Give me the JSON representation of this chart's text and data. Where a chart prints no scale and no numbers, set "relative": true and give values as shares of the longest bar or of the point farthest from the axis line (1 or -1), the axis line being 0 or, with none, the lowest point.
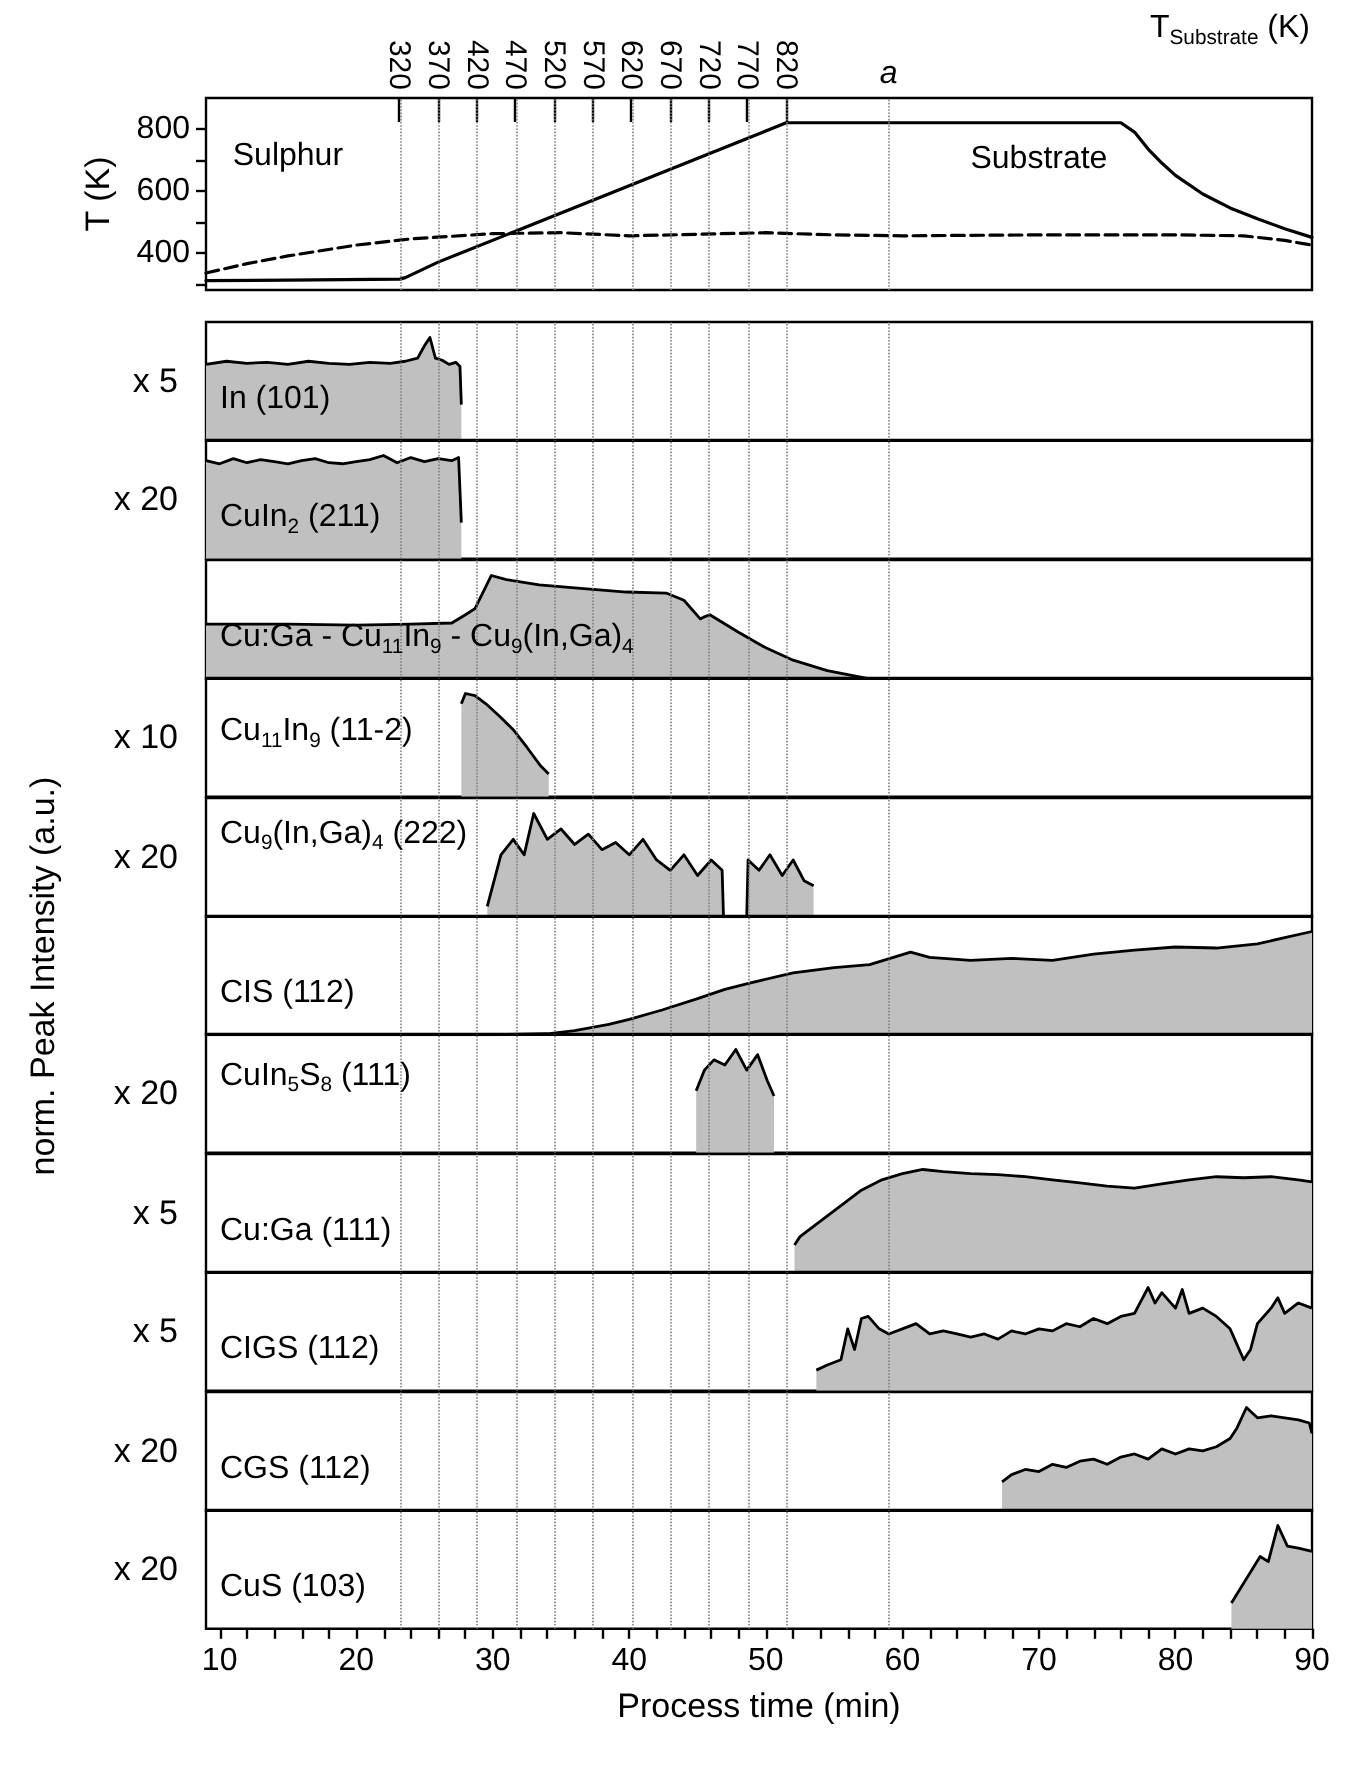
{
  "chart_data": [
    {
      "type": "line",
      "ylabel": "T (K)",
      "x2label": "T$_{Substrate}$ (K)",
      "xlim": [
        9,
        90
      ],
      "ylim": [
        280,
        900
      ],
      "yticks": [
        {
          "value": 300,
          "label": null
        },
        400,
        {
          "value": 500,
          "label": null
        },
        600,
        {
          "value": 700,
          "label": null
        },
        800
      ],
      "x2lim": [
        70,
        1500
      ],
      "x2ticks": [
        320,
        370,
        420,
        470,
        520,
        570,
        620,
        670,
        720,
        770,
        820
      ],
      "tick_labels": "y",
      "marker": "none",
      "series": [
        {
          "name": "Substrate",
          "color": "#000000",
          "line_style": "solid",
          "x": [
            9,
            15,
            23.2,
            23.6,
            26,
            51.5,
            60,
            70,
            76,
            77,
            78,
            79,
            80,
            82,
            84,
            86,
            88,
            90
          ],
          "values": [
            310,
            312,
            315,
            320,
            370,
            820,
            820,
            820,
            820,
            790,
            735,
            690,
            650,
            590,
            545,
            510,
            478,
            450
          ]
        },
        {
          "name": "Sulphur",
          "color": "#000000",
          "line_style": "dashed",
          "x": [
            9,
            12,
            15,
            20,
            24,
            30,
            35,
            40,
            45,
            50,
            55,
            60,
            70,
            80,
            85,
            88,
            90
          ],
          "values": [
            335,
            365,
            390,
            425,
            445,
            462,
            465,
            455,
            460,
            465,
            458,
            455,
            458,
            458,
            455,
            440,
            425
          ]
        }
      ],
      "ref_lines": [
        {
          "axis": "x",
          "value": 23.2,
          "color": "#808080",
          "line_style": "dotted"
        },
        {
          "axis": "x",
          "value": 26,
          "color": "#808080",
          "line_style": "dotted"
        },
        {
          "axis": "x",
          "value": 28.8,
          "color": "#808080",
          "line_style": "dotted"
        },
        {
          "axis": "x",
          "value": 31.7,
          "color": "#808080",
          "line_style": "dotted"
        },
        {
          "axis": "x",
          "value": 34.5,
          "color": "#808080",
          "line_style": "dotted"
        },
        {
          "axis": "x",
          "value": 37.3,
          "color": "#808080",
          "line_style": "dotted"
        },
        {
          "axis": "x",
          "value": 40.2,
          "color": "#808080",
          "line_style": "dotted"
        },
        {
          "axis": "x",
          "value": 43,
          "color": "#808080",
          "line_style": "dotted"
        },
        {
          "axis": "x",
          "value": 45.8,
          "color": "#808080",
          "line_style": "dotted"
        },
        {
          "axis": "x",
          "value": 48.7,
          "color": "#808080",
          "line_style": "dotted"
        },
        {
          "axis": "x",
          "value": 51.5,
          "color": "#808080",
          "line_style": "dotted"
        },
        {
          "axis": "x",
          "value": 59,
          "color": "#808080",
          "line_style": "dotted",
          "label": "a"
        }
      ]
    },
    {
      "type": "area",
      "relative": true,
      "ylabel": "x 5",
      "xlim": [
        9,
        90
      ],
      "tick_labels": false,
      "annotations": [
        "norm. Peak Intensity (a.u.)"
      ],
      "series": [
        {
          "name": "In (101)",
          "color": "#c0c0c0",
          "x": [
            9,
            10.5,
            12,
            13.5,
            15,
            16.5,
            18,
            19.5,
            21,
            22.5,
            23.6,
            24.5,
            25,
            25.4,
            25.8,
            26.3,
            26.8,
            27.3,
            27.6,
            27.7
          ],
          "values": [
            0.74,
            0.77,
            0.75,
            0.76,
            0.74,
            0.77,
            0.75,
            0.74,
            0.76,
            0.75,
            0.77,
            0.8,
            0.92,
            1.0,
            0.8,
            0.78,
            0.74,
            0.76,
            0.72,
            0.35
          ]
        }
      ],
      "ref_lines": [
        {
          "axis": "x",
          "value": 23.2,
          "color": "#808080",
          "line_style": "dotted"
        },
        {
          "axis": "x",
          "value": 26,
          "color": "#808080",
          "line_style": "dotted"
        },
        {
          "axis": "x",
          "value": 28.8,
          "color": "#808080",
          "line_style": "dotted"
        },
        {
          "axis": "x",
          "value": 31.7,
          "color": "#808080",
          "line_style": "dotted"
        },
        {
          "axis": "x",
          "value": 34.5,
          "color": "#808080",
          "line_style": "dotted"
        },
        {
          "axis": "x",
          "value": 37.3,
          "color": "#808080",
          "line_style": "dotted"
        },
        {
          "axis": "x",
          "value": 40.2,
          "color": "#808080",
          "line_style": "dotted"
        },
        {
          "axis": "x",
          "value": 43,
          "color": "#808080",
          "line_style": "dotted"
        },
        {
          "axis": "x",
          "value": 45.8,
          "color": "#808080",
          "line_style": "dotted"
        },
        {
          "axis": "x",
          "value": 48.7,
          "color": "#808080",
          "line_style": "dotted"
        },
        {
          "axis": "x",
          "value": 51.5,
          "color": "#808080",
          "line_style": "dotted"
        },
        {
          "axis": "x",
          "value": 59,
          "color": "#808080",
          "line_style": "dotted"
        }
      ]
    },
    {
      "type": "area",
      "relative": true,
      "ylabel": "x 20",
      "xlim": [
        9,
        90
      ],
      "tick_labels": false,
      "series": [
        {
          "name": "CuIn$_{2}$ (211)",
          "color": "#c0c0c0",
          "x": [
            9,
            10,
            11,
            12,
            13,
            14,
            15,
            16,
            17,
            18,
            19,
            20,
            21,
            22,
            23,
            24,
            25,
            26,
            27,
            27.5,
            27.7
          ],
          "values": [
            0.95,
            0.92,
            0.97,
            0.93,
            0.96,
            0.94,
            0.92,
            0.95,
            0.97,
            0.93,
            0.92,
            0.94,
            0.96,
            1.0,
            0.93,
            0.98,
            0.94,
            0.97,
            0.95,
            0.98,
            0.35
          ]
        }
      ],
      "ref_lines": [
        {
          "axis": "x",
          "value": 23.2,
          "color": "#808080",
          "line_style": "dotted"
        },
        {
          "axis": "x",
          "value": 26,
          "color": "#808080",
          "line_style": "dotted"
        },
        {
          "axis": "x",
          "value": 28.8,
          "color": "#808080",
          "line_style": "dotted"
        },
        {
          "axis": "x",
          "value": 31.7,
          "color": "#808080",
          "line_style": "dotted"
        },
        {
          "axis": "x",
          "value": 34.5,
          "color": "#808080",
          "line_style": "dotted"
        },
        {
          "axis": "x",
          "value": 37.3,
          "color": "#808080",
          "line_style": "dotted"
        },
        {
          "axis": "x",
          "value": 40.2,
          "color": "#808080",
          "line_style": "dotted"
        },
        {
          "axis": "x",
          "value": 43,
          "color": "#808080",
          "line_style": "dotted"
        },
        {
          "axis": "x",
          "value": 45.8,
          "color": "#808080",
          "line_style": "dotted"
        },
        {
          "axis": "x",
          "value": 48.7,
          "color": "#808080",
          "line_style": "dotted"
        },
        {
          "axis": "x",
          "value": 51.5,
          "color": "#808080",
          "line_style": "dotted"
        },
        {
          "axis": "x",
          "value": 59,
          "color": "#808080",
          "line_style": "dotted"
        }
      ]
    },
    {
      "type": "area",
      "relative": true,
      "xlim": [
        9,
        90
      ],
      "tick_labels": false,
      "series": [
        {
          "name": "Cu:Ga - Cu$_{11}$In$_{9}$ - Cu$_{9}$(In,Ga)$_{4}$",
          "color": "#c0c0c0",
          "x": [
            9,
            15,
            20,
            24,
            27,
            28,
            28.7,
            29.9,
            31,
            33.4,
            36,
            39.8,
            42.7,
            44,
            45.2,
            45.5,
            45.9,
            48,
            50,
            52,
            54.5,
            57.6
          ],
          "values": [
            0.53,
            0.53,
            0.52,
            0.53,
            0.54,
            0.62,
            0.68,
            1.0,
            0.96,
            0.91,
            0.88,
            0.84,
            0.83,
            0.76,
            0.58,
            0.6,
            0.62,
            0.45,
            0.3,
            0.18,
            0.08,
            0
          ]
        }
      ],
      "ref_lines": [
        {
          "axis": "x",
          "value": 23.2,
          "color": "#808080",
          "line_style": "dotted"
        },
        {
          "axis": "x",
          "value": 26,
          "color": "#808080",
          "line_style": "dotted"
        },
        {
          "axis": "x",
          "value": 28.8,
          "color": "#808080",
          "line_style": "dotted"
        },
        {
          "axis": "x",
          "value": 31.7,
          "color": "#808080",
          "line_style": "dotted"
        },
        {
          "axis": "x",
          "value": 34.5,
          "color": "#808080",
          "line_style": "dotted"
        },
        {
          "axis": "x",
          "value": 37.3,
          "color": "#808080",
          "line_style": "dotted"
        },
        {
          "axis": "x",
          "value": 40.2,
          "color": "#808080",
          "line_style": "dotted"
        },
        {
          "axis": "x",
          "value": 43,
          "color": "#808080",
          "line_style": "dotted"
        },
        {
          "axis": "x",
          "value": 45.8,
          "color": "#808080",
          "line_style": "dotted"
        },
        {
          "axis": "x",
          "value": 48.7,
          "color": "#808080",
          "line_style": "dotted"
        },
        {
          "axis": "x",
          "value": 51.5,
          "color": "#808080",
          "line_style": "dotted"
        },
        {
          "axis": "x",
          "value": 59,
          "color": "#808080",
          "line_style": "dotted"
        }
      ]
    },
    {
      "type": "area",
      "relative": true,
      "ylabel": "x 10",
      "xlim": [
        9,
        90
      ],
      "tick_labels": false,
      "series": [
        {
          "name": "Cu$_{11}$In$_{9}$ (11-2)",
          "color": "#c0c0c0",
          "x": [
            27.7,
            28,
            28.7,
            29.5,
            30.5,
            31.5,
            32.5,
            33.5,
            34.1
          ],
          "values": [
            0.9,
            1.0,
            0.98,
            0.9,
            0.78,
            0.65,
            0.48,
            0.3,
            0.22
          ]
        }
      ],
      "ref_lines": [
        {
          "axis": "x",
          "value": 23.2,
          "color": "#808080",
          "line_style": "dotted"
        },
        {
          "axis": "x",
          "value": 26,
          "color": "#808080",
          "line_style": "dotted"
        },
        {
          "axis": "x",
          "value": 28.8,
          "color": "#808080",
          "line_style": "dotted"
        },
        {
          "axis": "x",
          "value": 31.7,
          "color": "#808080",
          "line_style": "dotted"
        },
        {
          "axis": "x",
          "value": 34.5,
          "color": "#808080",
          "line_style": "dotted"
        },
        {
          "axis": "x",
          "value": 37.3,
          "color": "#808080",
          "line_style": "dotted"
        },
        {
          "axis": "x",
          "value": 40.2,
          "color": "#808080",
          "line_style": "dotted"
        },
        {
          "axis": "x",
          "value": 43,
          "color": "#808080",
          "line_style": "dotted"
        },
        {
          "axis": "x",
          "value": 45.8,
          "color": "#808080",
          "line_style": "dotted"
        },
        {
          "axis": "x",
          "value": 48.7,
          "color": "#808080",
          "line_style": "dotted"
        },
        {
          "axis": "x",
          "value": 51.5,
          "color": "#808080",
          "line_style": "dotted"
        },
        {
          "axis": "x",
          "value": 59,
          "color": "#808080",
          "line_style": "dotted"
        }
      ]
    },
    {
      "type": "area",
      "relative": true,
      "ylabel": "x 20",
      "xlim": [
        9,
        90
      ],
      "tick_labels": false,
      "series": [
        {
          "name": "Cu$_{9}$(In,Ga)$_{4}$ (222)",
          "color": "#c0c0c0",
          "x": [
            29.6,
            30.6,
            31.5,
            32.3,
            33,
            34,
            35,
            36,
            37,
            38,
            39,
            40,
            41,
            42,
            43,
            44,
            45,
            46,
            46.8,
            46.9,
            48.6,
            48.7,
            49.5,
            50.3,
            51.2,
            52,
            52.8,
            53.5
          ],
          "values": [
            0.1,
            0.6,
            0.75,
            0.6,
            1.0,
            0.75,
            0.85,
            0.7,
            0.8,
            0.65,
            0.72,
            0.6,
            0.75,
            0.55,
            0.45,
            0.6,
            0.4,
            0.55,
            0.45,
            0,
            0,
            0.55,
            0.45,
            0.6,
            0.4,
            0.55,
            0.35,
            0.3
          ]
        }
      ],
      "ref_lines": [
        {
          "axis": "x",
          "value": 23.2,
          "color": "#808080",
          "line_style": "dotted"
        },
        {
          "axis": "x",
          "value": 26,
          "color": "#808080",
          "line_style": "dotted"
        },
        {
          "axis": "x",
          "value": 28.8,
          "color": "#808080",
          "line_style": "dotted"
        },
        {
          "axis": "x",
          "value": 31.7,
          "color": "#808080",
          "line_style": "dotted"
        },
        {
          "axis": "x",
          "value": 34.5,
          "color": "#808080",
          "line_style": "dotted"
        },
        {
          "axis": "x",
          "value": 37.3,
          "color": "#808080",
          "line_style": "dotted"
        },
        {
          "axis": "x",
          "value": 40.2,
          "color": "#808080",
          "line_style": "dotted"
        },
        {
          "axis": "x",
          "value": 43,
          "color": "#808080",
          "line_style": "dotted"
        },
        {
          "axis": "x",
          "value": 45.8,
          "color": "#808080",
          "line_style": "dotted"
        },
        {
          "axis": "x",
          "value": 48.7,
          "color": "#808080",
          "line_style": "dotted"
        },
        {
          "axis": "x",
          "value": 51.5,
          "color": "#808080",
          "line_style": "dotted"
        },
        {
          "axis": "x",
          "value": 59,
          "color": "#808080",
          "line_style": "dotted"
        }
      ]
    },
    {
      "type": "area",
      "relative": true,
      "xlim": [
        9,
        90
      ],
      "tick_labels": false,
      "series": [
        {
          "name": "CIS (112)",
          "color": "#c0c0c0",
          "x": [
            9,
            20,
            30,
            34,
            36,
            38.5,
            40,
            42.4,
            45,
            47,
            48.8,
            52,
            55,
            57.6,
            60.6,
            62,
            65,
            68,
            71,
            74,
            77,
            80,
            83,
            86,
            88,
            90
          ],
          "values": [
            0,
            0,
            0,
            0.01,
            0.04,
            0.1,
            0.15,
            0.24,
            0.35,
            0.44,
            0.5,
            0.6,
            0.65,
            0.68,
            0.8,
            0.75,
            0.72,
            0.74,
            0.72,
            0.78,
            0.82,
            0.85,
            0.84,
            0.88,
            0.94,
            1.0
          ]
        }
      ],
      "ref_lines": [
        {
          "axis": "x",
          "value": 23.2,
          "color": "#808080",
          "line_style": "dotted"
        },
        {
          "axis": "x",
          "value": 26,
          "color": "#808080",
          "line_style": "dotted"
        },
        {
          "axis": "x",
          "value": 28.8,
          "color": "#808080",
          "line_style": "dotted"
        },
        {
          "axis": "x",
          "value": 31.7,
          "color": "#808080",
          "line_style": "dotted"
        },
        {
          "axis": "x",
          "value": 34.5,
          "color": "#808080",
          "line_style": "dotted"
        },
        {
          "axis": "x",
          "value": 37.3,
          "color": "#808080",
          "line_style": "dotted"
        },
        {
          "axis": "x",
          "value": 40.2,
          "color": "#808080",
          "line_style": "dotted"
        },
        {
          "axis": "x",
          "value": 43,
          "color": "#808080",
          "line_style": "dotted"
        },
        {
          "axis": "x",
          "value": 45.8,
          "color": "#808080",
          "line_style": "dotted"
        },
        {
          "axis": "x",
          "value": 48.7,
          "color": "#808080",
          "line_style": "dotted"
        },
        {
          "axis": "x",
          "value": 51.5,
          "color": "#808080",
          "line_style": "dotted"
        },
        {
          "axis": "x",
          "value": 59,
          "color": "#808080",
          "line_style": "dotted"
        }
      ]
    },
    {
      "type": "area",
      "relative": true,
      "ylabel": "x 20",
      "xlim": [
        9,
        90
      ],
      "tick_labels": false,
      "series": [
        {
          "name": "CuIn$_{5}$S$_{8}$ (111)",
          "color": "#c0c0c0",
          "x": [
            44.9,
            45.5,
            46.2,
            47,
            47.8,
            48.6,
            49.4,
            50.1,
            50.6
          ],
          "values": [
            0.6,
            0.8,
            0.9,
            0.85,
            1.0,
            0.8,
            0.95,
            0.7,
            0.55
          ]
        }
      ],
      "ref_lines": [
        {
          "axis": "x",
          "value": 23.2,
          "color": "#808080",
          "line_style": "dotted"
        },
        {
          "axis": "x",
          "value": 26,
          "color": "#808080",
          "line_style": "dotted"
        },
        {
          "axis": "x",
          "value": 28.8,
          "color": "#808080",
          "line_style": "dotted"
        },
        {
          "axis": "x",
          "value": 31.7,
          "color": "#808080",
          "line_style": "dotted"
        },
        {
          "axis": "x",
          "value": 34.5,
          "color": "#808080",
          "line_style": "dotted"
        },
        {
          "axis": "x",
          "value": 37.3,
          "color": "#808080",
          "line_style": "dotted"
        },
        {
          "axis": "x",
          "value": 40.2,
          "color": "#808080",
          "line_style": "dotted"
        },
        {
          "axis": "x",
          "value": 43,
          "color": "#808080",
          "line_style": "dotted"
        },
        {
          "axis": "x",
          "value": 45.8,
          "color": "#808080",
          "line_style": "dotted"
        },
        {
          "axis": "x",
          "value": 48.7,
          "color": "#808080",
          "line_style": "dotted"
        },
        {
          "axis": "x",
          "value": 51.5,
          "color": "#808080",
          "line_style": "dotted"
        },
        {
          "axis": "x",
          "value": 59,
          "color": "#808080",
          "line_style": "dotted"
        }
      ]
    },
    {
      "type": "area",
      "relative": true,
      "ylabel": "x 5",
      "xlim": [
        9,
        90
      ],
      "tick_labels": false,
      "series": [
        {
          "name": "Cu:Ga (111)",
          "color": "#c0c0c0",
          "x": [
            52.1,
            52.5,
            54,
            55.5,
            57,
            58.5,
            60,
            61.5,
            63,
            65,
            67,
            69,
            71,
            73,
            75,
            77,
            79,
            81,
            83,
            85,
            87,
            89,
            90
          ],
          "values": [
            0.27,
            0.35,
            0.5,
            0.65,
            0.8,
            0.9,
            0.96,
            1.0,
            0.98,
            0.96,
            0.95,
            0.93,
            0.9,
            0.87,
            0.84,
            0.82,
            0.86,
            0.9,
            0.93,
            0.92,
            0.93,
            0.9,
            0.88
          ]
        }
      ],
      "ref_lines": [
        {
          "axis": "x",
          "value": 23.2,
          "color": "#808080",
          "line_style": "dotted"
        },
        {
          "axis": "x",
          "value": 26,
          "color": "#808080",
          "line_style": "dotted"
        },
        {
          "axis": "x",
          "value": 28.8,
          "color": "#808080",
          "line_style": "dotted"
        },
        {
          "axis": "x",
          "value": 31.7,
          "color": "#808080",
          "line_style": "dotted"
        },
        {
          "axis": "x",
          "value": 34.5,
          "color": "#808080",
          "line_style": "dotted"
        },
        {
          "axis": "x",
          "value": 37.3,
          "color": "#808080",
          "line_style": "dotted"
        },
        {
          "axis": "x",
          "value": 40.2,
          "color": "#808080",
          "line_style": "dotted"
        },
        {
          "axis": "x",
          "value": 43,
          "color": "#808080",
          "line_style": "dotted"
        },
        {
          "axis": "x",
          "value": 45.8,
          "color": "#808080",
          "line_style": "dotted"
        },
        {
          "axis": "x",
          "value": 48.7,
          "color": "#808080",
          "line_style": "dotted"
        },
        {
          "axis": "x",
          "value": 51.5,
          "color": "#808080",
          "line_style": "dotted"
        },
        {
          "axis": "x",
          "value": 59,
          "color": "#808080",
          "line_style": "dotted"
        }
      ]
    },
    {
      "type": "area",
      "relative": true,
      "ylabel": "x 5",
      "xlim": [
        9,
        90
      ],
      "tick_labels": false,
      "series": [
        {
          "name": "CIGS (112)",
          "color": "#c0c0c0",
          "x": [
            53.7,
            54.5,
            55.5,
            56,
            56.5,
            57,
            57.5,
            58.3,
            59,
            60,
            61,
            62,
            63,
            64,
            65,
            66,
            67,
            68,
            69,
            70,
            71,
            72,
            73,
            74,
            75,
            76,
            77,
            78,
            78.5,
            79,
            80,
            80.5,
            81,
            82,
            83,
            84,
            85,
            85.5,
            86,
            87,
            87.5,
            88,
            89,
            90
          ],
          "values": [
            0.2,
            0.25,
            0.3,
            0.6,
            0.4,
            0.7,
            0.72,
            0.6,
            0.55,
            0.6,
            0.65,
            0.55,
            0.58,
            0.55,
            0.52,
            0.55,
            0.5,
            0.58,
            0.55,
            0.6,
            0.58,
            0.65,
            0.62,
            0.7,
            0.65,
            0.72,
            0.75,
            1.0,
            0.85,
            0.95,
            0.8,
            0.98,
            0.75,
            0.8,
            0.72,
            0.6,
            0.3,
            0.4,
            0.65,
            0.8,
            0.9,
            0.75,
            0.85,
            0.8
          ]
        }
      ],
      "ref_lines": [
        {
          "axis": "x",
          "value": 23.2,
          "color": "#808080",
          "line_style": "dotted"
        },
        {
          "axis": "x",
          "value": 26,
          "color": "#808080",
          "line_style": "dotted"
        },
        {
          "axis": "x",
          "value": 28.8,
          "color": "#808080",
          "line_style": "dotted"
        },
        {
          "axis": "x",
          "value": 31.7,
          "color": "#808080",
          "line_style": "dotted"
        },
        {
          "axis": "x",
          "value": 34.5,
          "color": "#808080",
          "line_style": "dotted"
        },
        {
          "axis": "x",
          "value": 37.3,
          "color": "#808080",
          "line_style": "dotted"
        },
        {
          "axis": "x",
          "value": 40.2,
          "color": "#808080",
          "line_style": "dotted"
        },
        {
          "axis": "x",
          "value": 43,
          "color": "#808080",
          "line_style": "dotted"
        },
        {
          "axis": "x",
          "value": 45.8,
          "color": "#808080",
          "line_style": "dotted"
        },
        {
          "axis": "x",
          "value": 48.7,
          "color": "#808080",
          "line_style": "dotted"
        },
        {
          "axis": "x",
          "value": 51.5,
          "color": "#808080",
          "line_style": "dotted"
        },
        {
          "axis": "x",
          "value": 59,
          "color": "#808080",
          "line_style": "dotted"
        }
      ]
    },
    {
      "type": "area",
      "relative": true,
      "ylabel": "x 20",
      "xlim": [
        9,
        90
      ],
      "tick_labels": false,
      "series": [
        {
          "name": "CGS (112)",
          "color": "#c0c0c0",
          "x": [
            67.3,
            68,
            69,
            70,
            71,
            72,
            73,
            74,
            75,
            76,
            77,
            78,
            79,
            80,
            81,
            82,
            83,
            84,
            84.5,
            85.2,
            86,
            87,
            88,
            89,
            89.8,
            90
          ],
          "values": [
            0.28,
            0.35,
            0.4,
            0.38,
            0.45,
            0.42,
            0.48,
            0.5,
            0.45,
            0.52,
            0.55,
            0.5,
            0.6,
            0.55,
            0.6,
            0.58,
            0.62,
            0.7,
            0.8,
            1.0,
            0.9,
            0.92,
            0.9,
            0.88,
            0.85,
            0.75
          ]
        }
      ],
      "ref_lines": [
        {
          "axis": "x",
          "value": 23.2,
          "color": "#808080",
          "line_style": "dotted"
        },
        {
          "axis": "x",
          "value": 26,
          "color": "#808080",
          "line_style": "dotted"
        },
        {
          "axis": "x",
          "value": 28.8,
          "color": "#808080",
          "line_style": "dotted"
        },
        {
          "axis": "x",
          "value": 31.7,
          "color": "#808080",
          "line_style": "dotted"
        },
        {
          "axis": "x",
          "value": 34.5,
          "color": "#808080",
          "line_style": "dotted"
        },
        {
          "axis": "x",
          "value": 37.3,
          "color": "#808080",
          "line_style": "dotted"
        },
        {
          "axis": "x",
          "value": 40.2,
          "color": "#808080",
          "line_style": "dotted"
        },
        {
          "axis": "x",
          "value": 43,
          "color": "#808080",
          "line_style": "dotted"
        },
        {
          "axis": "x",
          "value": 45.8,
          "color": "#808080",
          "line_style": "dotted"
        },
        {
          "axis": "x",
          "value": 48.7,
          "color": "#808080",
          "line_style": "dotted"
        },
        {
          "axis": "x",
          "value": 51.5,
          "color": "#808080",
          "line_style": "dotted"
        },
        {
          "axis": "x",
          "value": 59,
          "color": "#808080",
          "line_style": "dotted"
        }
      ]
    },
    {
      "type": "area",
      "relative": true,
      "ylabel": "x 20",
      "xlabel": "Process time (min)",
      "xlim": [
        9,
        90
      ],
      "xticks": [
        10,
        {
          "value": 12,
          "label": null
        },
        {
          "value": 14,
          "label": null
        },
        {
          "value": 16,
          "label": null
        },
        {
          "value": 18,
          "label": null
        },
        20,
        {
          "value": 22,
          "label": null
        },
        {
          "value": 24,
          "label": null
        },
        {
          "value": 26,
          "label": null
        },
        {
          "value": 28,
          "label": null
        },
        30,
        {
          "value": 32,
          "label": null
        },
        {
          "value": 34,
          "label": null
        },
        {
          "value": 36,
          "label": null
        },
        {
          "value": 38,
          "label": null
        },
        40,
        {
          "value": 42,
          "label": null
        },
        {
          "value": 44,
          "label": null
        },
        {
          "value": 46,
          "label": null
        },
        {
          "value": 48,
          "label": null
        },
        50,
        {
          "value": 52,
          "label": null
        },
        {
          "value": 54,
          "label": null
        },
        {
          "value": 56,
          "label": null
        },
        {
          "value": 58,
          "label": null
        },
        60,
        {
          "value": 62,
          "label": null
        },
        {
          "value": 64,
          "label": null
        },
        {
          "value": 66,
          "label": null
        },
        {
          "value": 68,
          "label": null
        },
        70,
        {
          "value": 72,
          "label": null
        },
        {
          "value": 74,
          "label": null
        },
        {
          "value": 76,
          "label": null
        },
        {
          "value": 78,
          "label": null
        },
        80,
        {
          "value": 82,
          "label": null
        },
        {
          "value": 84,
          "label": null
        },
        {
          "value": 86,
          "label": null
        },
        {
          "value": 88,
          "label": null
        },
        90
      ],
      "tick_labels": "x",
      "series": [
        {
          "name": "CuS (103)",
          "color": "#c0c0c0",
          "x": [
            84.1,
            84.8,
            85.5,
            86.2,
            86.8,
            87.5,
            88.2,
            89,
            90
          ],
          "values": [
            0.25,
            0.4,
            0.55,
            0.7,
            0.65,
            1.0,
            0.8,
            0.78,
            0.75
          ]
        }
      ],
      "ref_lines": [
        {
          "axis": "x",
          "value": 23.2,
          "color": "#808080",
          "line_style": "dotted"
        },
        {
          "axis": "x",
          "value": 26,
          "color": "#808080",
          "line_style": "dotted"
        },
        {
          "axis": "x",
          "value": 28.8,
          "color": "#808080",
          "line_style": "dotted"
        },
        {
          "axis": "x",
          "value": 31.7,
          "color": "#808080",
          "line_style": "dotted"
        },
        {
          "axis": "x",
          "value": 34.5,
          "color": "#808080",
          "line_style": "dotted"
        },
        {
          "axis": "x",
          "value": 37.3,
          "color": "#808080",
          "line_style": "dotted"
        },
        {
          "axis": "x",
          "value": 40.2,
          "color": "#808080",
          "line_style": "dotted"
        },
        {
          "axis": "x",
          "value": 43,
          "color": "#808080",
          "line_style": "dotted"
        },
        {
          "axis": "x",
          "value": 45.8,
          "color": "#808080",
          "line_style": "dotted"
        },
        {
          "axis": "x",
          "value": 48.7,
          "color": "#808080",
          "line_style": "dotted"
        },
        {
          "axis": "x",
          "value": 51.5,
          "color": "#808080",
          "line_style": "dotted"
        },
        {
          "axis": "x",
          "value": 59,
          "color": "#808080",
          "line_style": "dotted"
        }
      ]
    }
  ]
}
